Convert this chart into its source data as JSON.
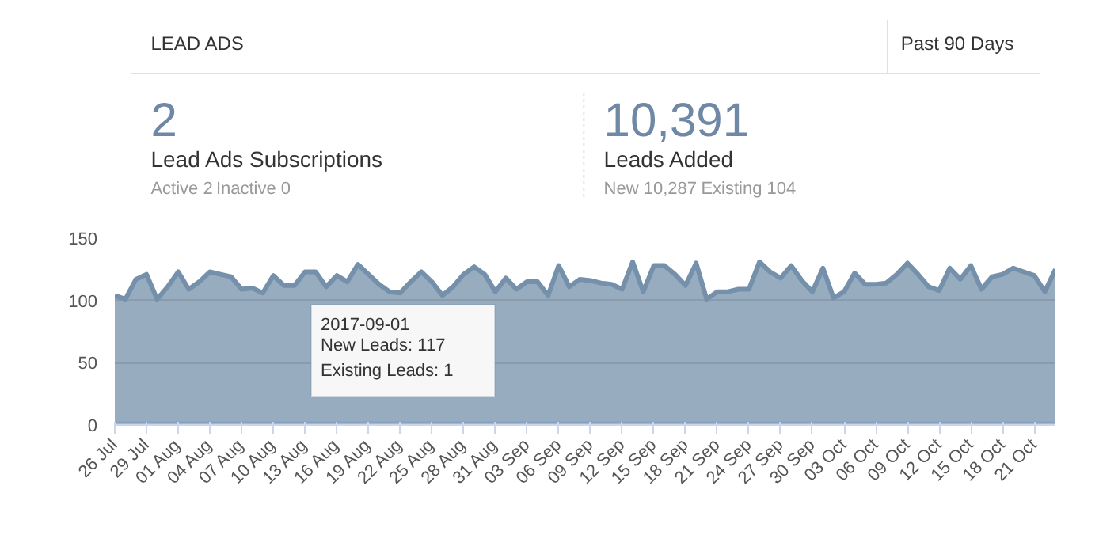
{
  "chart_data": {
    "type": "area",
    "title": "LEAD ADS",
    "stacked": true,
    "x": [
      "2017-07-26",
      "2017-07-27",
      "2017-07-28",
      "2017-07-29",
      "2017-07-30",
      "2017-07-31",
      "2017-08-01",
      "2017-08-02",
      "2017-08-03",
      "2017-08-04",
      "2017-08-05",
      "2017-08-06",
      "2017-08-07",
      "2017-08-08",
      "2017-08-09",
      "2017-08-10",
      "2017-08-11",
      "2017-08-12",
      "2017-08-13",
      "2017-08-14",
      "2017-08-15",
      "2017-08-16",
      "2017-08-17",
      "2017-08-18",
      "2017-08-19",
      "2017-08-20",
      "2017-08-21",
      "2017-08-22",
      "2017-08-23",
      "2017-08-24",
      "2017-08-25",
      "2017-08-26",
      "2017-08-27",
      "2017-08-28",
      "2017-08-29",
      "2017-08-30",
      "2017-08-31",
      "2017-09-01",
      "2017-09-02",
      "2017-09-03",
      "2017-09-04",
      "2017-09-05",
      "2017-09-06",
      "2017-09-07",
      "2017-09-08",
      "2017-09-09",
      "2017-09-10",
      "2017-09-11",
      "2017-09-12",
      "2017-09-13",
      "2017-09-14",
      "2017-09-15",
      "2017-09-16",
      "2017-09-17",
      "2017-09-18",
      "2017-09-19",
      "2017-09-20",
      "2017-09-21",
      "2017-09-22",
      "2017-09-23",
      "2017-09-24",
      "2017-09-25",
      "2017-09-26",
      "2017-09-27",
      "2017-09-28",
      "2017-09-29",
      "2017-09-30",
      "2017-10-01",
      "2017-10-02",
      "2017-10-03",
      "2017-10-04",
      "2017-10-05",
      "2017-10-06",
      "2017-10-07",
      "2017-10-08",
      "2017-10-09",
      "2017-10-10",
      "2017-10-11",
      "2017-10-12",
      "2017-10-13",
      "2017-10-14",
      "2017-10-15",
      "2017-10-16",
      "2017-10-17",
      "2017-10-18",
      "2017-10-19",
      "2017-10-20",
      "2017-10-21",
      "2017-10-22",
      "2017-10-23"
    ],
    "series": [
      {
        "color": "#b5d3f5",
        "values": [
          1,
          1,
          1,
          1,
          1,
          1,
          1,
          1,
          1,
          1,
          1,
          1,
          1,
          1,
          1,
          1,
          1,
          1,
          1,
          1,
          1,
          1,
          1,
          1,
          1,
          1,
          1,
          1,
          1,
          1,
          1,
          1,
          1,
          1,
          1,
          1,
          1,
          1,
          1,
          1,
          1,
          1,
          1,
          1,
          1,
          1,
          1,
          1,
          1,
          1,
          1,
          1,
          1,
          1,
          1,
          1,
          1,
          1,
          1,
          1,
          1,
          1,
          1,
          1,
          1,
          1,
          1,
          1,
          1,
          1,
          1,
          1,
          1,
          1,
          1,
          1,
          1,
          1,
          1,
          1,
          1,
          1,
          1,
          1,
          1,
          1,
          1,
          1,
          1,
          1
        ]
      },
      {
        "color": "#7590ab",
        "values": [
          103,
          100,
          116,
          120,
          100,
          110,
          122,
          108,
          114,
          122,
          120,
          118,
          108,
          109,
          105,
          119,
          111,
          111,
          122,
          122,
          110,
          119,
          114,
          128,
          120,
          112,
          106,
          105,
          114,
          122,
          114,
          103,
          110,
          120,
          126,
          120,
          106,
          117,
          108,
          114,
          114,
          103,
          127,
          110,
          116,
          115,
          113,
          112,
          108,
          130,
          106,
          127,
          127,
          120,
          111,
          129,
          100,
          106,
          106,
          108,
          108,
          130,
          122,
          117,
          127,
          115,
          106,
          125,
          101,
          106,
          121,
          112,
          112,
          113,
          120,
          129,
          120,
          110,
          107,
          125,
          116,
          127,
          108,
          118,
          120,
          125,
          122,
          119,
          106,
          124
        ]
      }
    ],
    "xlim": [
      "2017-07-26",
      "2017-10-23"
    ],
    "xticks": [
      {
        "value": "2017-07-26",
        "label": "26 Jul"
      },
      {
        "value": "2017-07-29",
        "label": "29 Jul"
      },
      {
        "value": "2017-08-01",
        "label": "01 Aug"
      },
      {
        "value": "2017-08-04",
        "label": "04 Aug"
      },
      {
        "value": "2017-08-07",
        "label": "07 Aug"
      },
      {
        "value": "2017-08-10",
        "label": "10 Aug"
      },
      {
        "value": "2017-08-13",
        "label": "13 Aug"
      },
      {
        "value": "2017-08-16",
        "label": "16 Aug"
      },
      {
        "value": "2017-08-19",
        "label": "19 Aug"
      },
      {
        "value": "2017-08-22",
        "label": "22 Aug"
      },
      {
        "value": "2017-08-25",
        "label": "25 Aug"
      },
      {
        "value": "2017-08-28",
        "label": "28 Aug"
      },
      {
        "value": "2017-08-31",
        "label": "31 Aug"
      },
      {
        "value": "2017-09-03",
        "label": "03 Sep"
      },
      {
        "value": "2017-09-06",
        "label": "06 Sep"
      },
      {
        "value": "2017-09-09",
        "label": "09 Sep"
      },
      {
        "value": "2017-09-12",
        "label": "12 Sep"
      },
      {
        "value": "2017-09-15",
        "label": "15 Sep"
      },
      {
        "value": "2017-09-18",
        "label": "18 Sep"
      },
      {
        "value": "2017-09-21",
        "label": "21 Sep"
      },
      {
        "value": "2017-09-24",
        "label": "24 Sep"
      },
      {
        "value": "2017-09-27",
        "label": "27 Sep"
      },
      {
        "value": "2017-09-30",
        "label": "30 Sep"
      },
      {
        "value": "2017-10-03",
        "label": "03 Oct"
      },
      {
        "value": "2017-10-06",
        "label": "06 Oct"
      },
      {
        "value": "2017-10-09",
        "label": "09 Oct"
      },
      {
        "value": "2017-10-12",
        "label": "12 Oct"
      },
      {
        "value": "2017-10-15",
        "label": "15 Oct"
      },
      {
        "value": "2017-10-18",
        "label": "18 Oct"
      },
      {
        "value": "2017-10-21",
        "label": "21 Oct"
      }
    ],
    "ylim": [
      0,
      150
    ],
    "yticks": [
      0,
      50,
      100,
      150
    ],
    "grid": "y",
    "annotations": [
      "Past 90 Days",
      "2",
      "Lead Ads Subscriptions",
      "Active 2",
      "Inactive 0",
      "10,391",
      "Leads Added",
      "New 10,287",
      "Existing 104",
      "2017-09-01",
      "New Leads: 117",
      "Existing Leads: 1"
    ]
  }
}
